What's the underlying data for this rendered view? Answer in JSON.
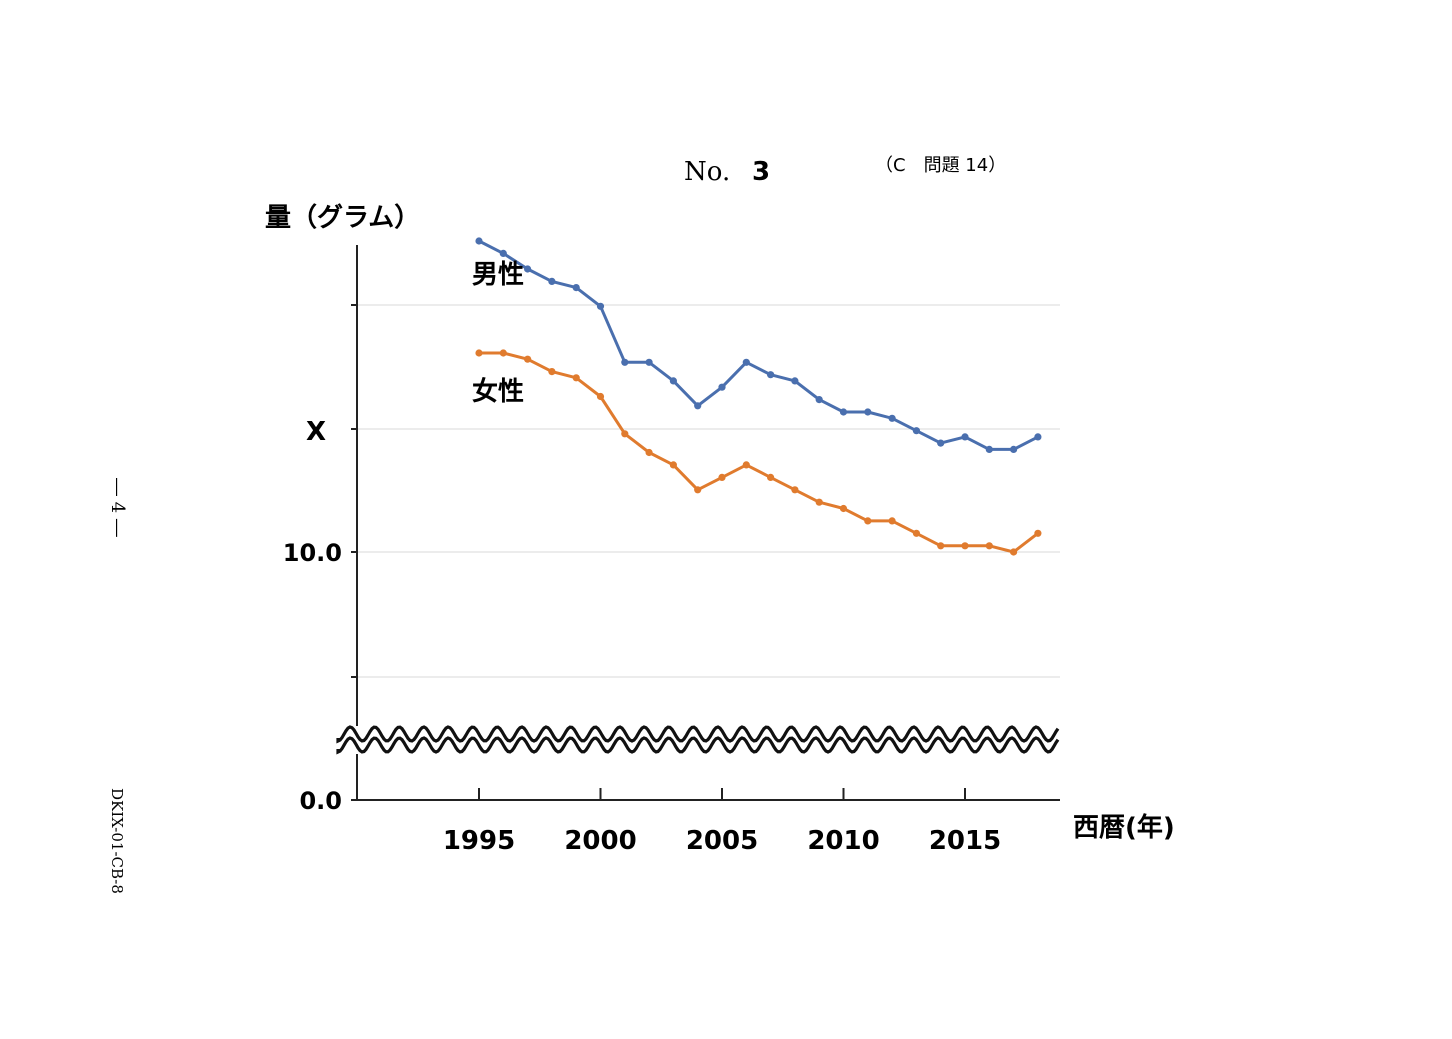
{
  "header": {
    "no_label": "No.",
    "no_value": "3",
    "problem_ref": "（C　問題 14）"
  },
  "side": {
    "page_number": "― 4 ―",
    "doc_code": "DKIX-01-CB-8"
  },
  "chart_data": {
    "type": "line",
    "ylabel": "量（グラム）",
    "xlabel": "西暦(年)",
    "y_tick_labels": [
      "0.0",
      "10.0",
      "X"
    ],
    "x_tick_labels": [
      "1995",
      "2000",
      "2005",
      "2010",
      "2015"
    ],
    "x": [
      1995,
      1996,
      1997,
      1998,
      1999,
      2000,
      2001,
      2002,
      2003,
      2004,
      2005,
      2006,
      2007,
      2008,
      2009,
      2010,
      2011,
      2012,
      2013,
      2014,
      2015,
      2016,
      2017,
      2018
    ],
    "series": [
      {
        "name": "男性",
        "color": "#4a6fae",
        "values": [
          15.0,
          14.8,
          14.55,
          14.35,
          14.25,
          13.95,
          13.05,
          13.05,
          12.75,
          12.35,
          12.65,
          13.05,
          12.85,
          12.75,
          12.45,
          12.25,
          12.25,
          12.15,
          11.95,
          11.75,
          11.85,
          11.65,
          11.65,
          11.85
        ]
      },
      {
        "name": "女性",
        "color": "#e07b2e",
        "values": [
          13.2,
          13.2,
          13.1,
          12.9,
          12.8,
          12.5,
          11.9,
          11.6,
          11.4,
          11.0,
          11.2,
          11.4,
          11.2,
          11.0,
          10.8,
          10.7,
          10.5,
          10.5,
          10.3,
          10.1,
          10.1,
          10.1,
          10.0,
          10.3
        ]
      }
    ],
    "grid": true,
    "axis_break": true
  }
}
